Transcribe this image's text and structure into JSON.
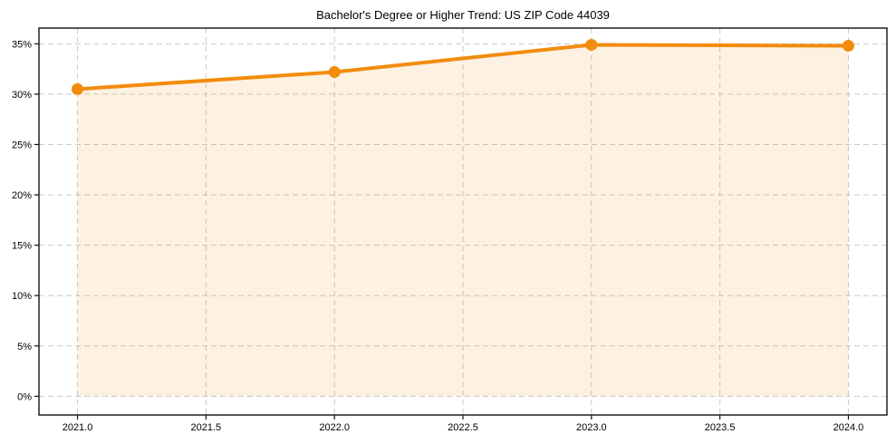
{
  "chart_data": {
    "type": "line",
    "title": "Bachelor's Degree or Higher Trend: US ZIP Code 44039",
    "x": [
      2021,
      2022,
      2023,
      2024
    ],
    "values": [
      30.5,
      32.2,
      34.9,
      34.8
    ],
    "x_tick_labels": [
      "2021.0",
      "2021.5",
      "2022.0",
      "2022.5",
      "2023.0",
      "2023.5",
      "2024.0"
    ],
    "x_tick_values": [
      2021.0,
      2021.5,
      2022.0,
      2022.5,
      2023.0,
      2023.5,
      2024.0
    ],
    "y_tick_labels": [
      "0%",
      "5%",
      "10%",
      "15%",
      "20%",
      "25%",
      "30%",
      "35%"
    ],
    "y_tick_values": [
      0,
      5,
      10,
      15,
      20,
      25,
      30,
      35
    ],
    "xlim": [
      2020.85,
      2024.15
    ],
    "ylim": [
      -1.86,
      36.56
    ],
    "grid": true,
    "grid_linestyle": "dashed",
    "legend": "none",
    "fill_to_zero": true,
    "colors": {
      "line": "#F28C0D",
      "marker": "#F28C0D",
      "fill": "rgba(242,140,13,0.12)",
      "grid": "#c9c9c9",
      "spine": "#111111",
      "text": "#000000"
    }
  }
}
